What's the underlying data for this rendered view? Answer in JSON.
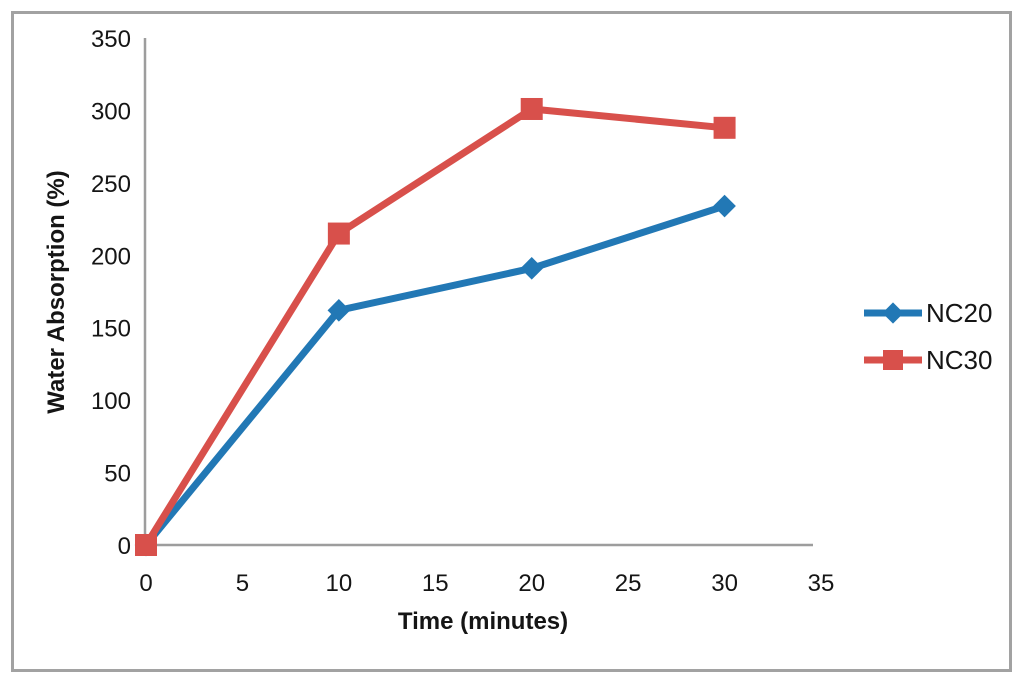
{
  "frame": {
    "border_color": "#a2a2a2"
  },
  "chart_data": {
    "type": "line",
    "title": "",
    "xlabel": "Time (minutes)",
    "ylabel": "Water Absorption (%)",
    "x": [
      0,
      10,
      20,
      30
    ],
    "series": [
      {
        "name": "NC20",
        "marker": "diamond",
        "color": "#2278b5",
        "values": [
          0,
          162,
          191,
          234
        ]
      },
      {
        "name": "NC30",
        "marker": "square",
        "color": "#d8504b",
        "values": [
          0,
          215,
          301,
          288
        ]
      }
    ],
    "xlim": [
      0,
      35
    ],
    "x_ticks": [
      0,
      5,
      10,
      15,
      20,
      25,
      30,
      35
    ],
    "ylim": [
      0,
      350
    ],
    "y_ticks": [
      0,
      50,
      100,
      150,
      200,
      250,
      300,
      350
    ],
    "grid": false,
    "legend_position": "right",
    "axis_color": "#9d9d9d",
    "text_color": "#151515"
  }
}
